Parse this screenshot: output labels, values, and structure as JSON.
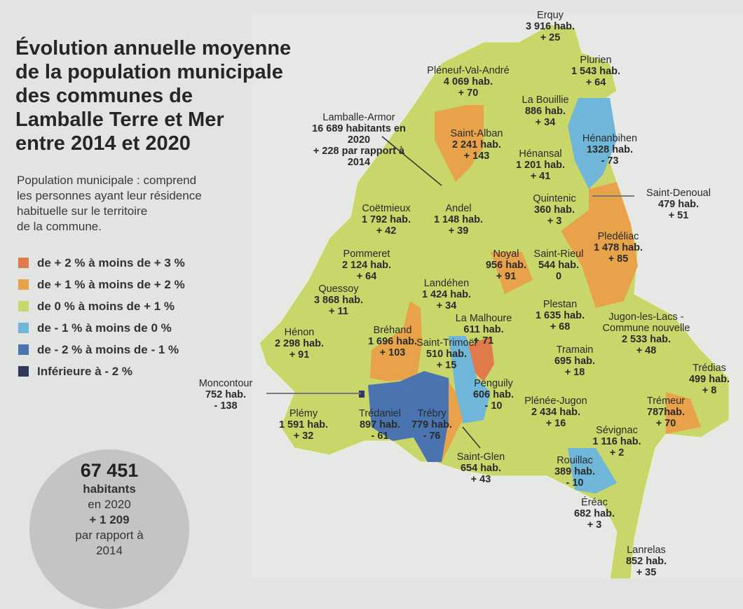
{
  "title": [
    "Évolution annuelle moyenne",
    "de la population municipale",
    "des communes de",
    "Lamballe Terre et Mer",
    "entre 2014 et 2020"
  ],
  "description": [
    "Population municipale : comprend",
    "les personnes ayant leur résidence",
    "habituelle sur le territoire",
    "de la commune."
  ],
  "legend": [
    {
      "label": "de + 2 % à moins de + 3 %",
      "color": "#e07a4a"
    },
    {
      "label": "de + 1 % à moins de + 2 %",
      "color": "#e8a24a"
    },
    {
      "label": "de 0 % à moins de + 1 %",
      "color": "#c8d66a"
    },
    {
      "label": "de - 1 % à moins de 0 %",
      "color": "#6fb6d8"
    },
    {
      "label": "de - 2 % à moins de - 1 %",
      "color": "#4a74b0"
    },
    {
      "label": "Inférieure à - 2 %",
      "color": "#2f3a5c"
    }
  ],
  "total": {
    "value": "67 451",
    "l1": "habitants",
    "l2": "en 2020",
    "l3": "+ 1 209",
    "l4": "par rapport à",
    "l5": "2014"
  },
  "communes": [
    {
      "name": "Erquy",
      "pop": "3 916 hab.",
      "change": "+ 25"
    },
    {
      "name": "Plurien",
      "pop": "1 543 hab.",
      "change": "+ 64"
    },
    {
      "name": "Pléneuf-Val-André",
      "pop": "4 069 hab.",
      "change": "+ 70"
    },
    {
      "name": "La Bouillie",
      "pop": "886 hab.",
      "change": "+ 34"
    },
    {
      "name": "Lamballe-Armor",
      "pop": "16 689 habitants en 2020",
      "change": "+ 228 par rapport à 2014"
    },
    {
      "name": "Saint-Alban",
      "pop": "2 241 hab.",
      "change": "+ 143"
    },
    {
      "name": "Hénansal",
      "pop": "1 201 hab.",
      "change": "+ 41"
    },
    {
      "name": "Hénanbihen",
      "pop": "1328 hab.",
      "change": "- 73"
    },
    {
      "name": "Saint-Denoual",
      "pop": "479 hab.",
      "change": "+ 51"
    },
    {
      "name": "Quintenic",
      "pop": "360 hab.",
      "change": "+ 3"
    },
    {
      "name": "Coëtmieux",
      "pop": "1 792 hab.",
      "change": "+ 42"
    },
    {
      "name": "Andel",
      "pop": "1 148 hab.",
      "change": "+ 39"
    },
    {
      "name": "Pledéliac",
      "pop": "1 478 hab.",
      "change": "+ 85"
    },
    {
      "name": "Pommeret",
      "pop": "2 124 hab.",
      "change": "+ 64"
    },
    {
      "name": "Noyal",
      "pop": "956 hab.",
      "change": "+ 91"
    },
    {
      "name": "Saint-Rieul",
      "pop": "544 hab.",
      "change": "0"
    },
    {
      "name": "Quessoy",
      "pop": "3 868 hab.",
      "change": "+ 11"
    },
    {
      "name": "Landéhen",
      "pop": "1 424 hab.",
      "change": "+ 34"
    },
    {
      "name": "Plestan",
      "pop": "1 635 hab.",
      "change": "+ 68"
    },
    {
      "name": "La Malhoure",
      "pop": "611 hab.",
      "change": "+ 71"
    },
    {
      "name": "Jugon-les-Lacs - Commune nouvelle",
      "pop": "2 533 hab.",
      "change": "+ 48"
    },
    {
      "name": "Hénon",
      "pop": "2 298 hab.",
      "change": "+ 91"
    },
    {
      "name": "Bréhand",
      "pop": "1 696 hab.",
      "change": "+ 103"
    },
    {
      "name": "Saint-Trimoël",
      "pop": "510 hab.",
      "change": "+ 15"
    },
    {
      "name": "Tramain",
      "pop": "695 hab.",
      "change": "+ 18"
    },
    {
      "name": "Trédias",
      "pop": "499 hab.",
      "change": "+ 8"
    },
    {
      "name": "Moncontour",
      "pop": "752 hab.",
      "change": "- 138"
    },
    {
      "name": "Penguily",
      "pop": "606 hab.",
      "change": "- 10"
    },
    {
      "name": "Plénée-Jugon",
      "pop": "2 434 hab.",
      "change": "+ 16"
    },
    {
      "name": "Trémeur",
      "pop": "787hab.",
      "change": "+ 70"
    },
    {
      "name": "Plémy",
      "pop": "1 591 hab.",
      "change": "+ 32"
    },
    {
      "name": "Trédaniel",
      "pop": "897 hab.",
      "change": "- 61"
    },
    {
      "name": "Trébry",
      "pop": "779 hab.",
      "change": "- 76"
    },
    {
      "name": "Sévignac",
      "pop": "1 116 hab.",
      "change": "+ 2"
    },
    {
      "name": "Saint-Glen",
      "pop": "654 hab.",
      "change": "+ 43"
    },
    {
      "name": "Rouillac",
      "pop": "389 hab.",
      "change": "- 10"
    },
    {
      "name": "Éréac",
      "pop": "682 hab.",
      "change": "+ 3"
    },
    {
      "name": "Lanrelas",
      "pop": "852 hab.",
      "change": "+ 35"
    }
  ]
}
